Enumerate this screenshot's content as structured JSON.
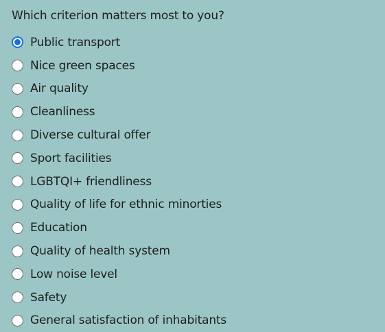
{
  "question": "Which criterion matters most to you?",
  "selected_index": 0,
  "colors": {
    "background": "#9bc6c5",
    "accent": "#1a6fd8"
  },
  "options": [
    {
      "label": "Public transport"
    },
    {
      "label": "Nice green spaces"
    },
    {
      "label": "Air quality"
    },
    {
      "label": "Cleanliness"
    },
    {
      "label": "Diverse cultural offer"
    },
    {
      "label": "Sport facilities"
    },
    {
      "label": "LGBTQI+ friendliness"
    },
    {
      "label": "Quality of life for ethnic minorties"
    },
    {
      "label": "Education"
    },
    {
      "label": "Quality of health system"
    },
    {
      "label": "Low noise level"
    },
    {
      "label": "Safety"
    },
    {
      "label": "General satisfaction of inhabitants"
    }
  ]
}
